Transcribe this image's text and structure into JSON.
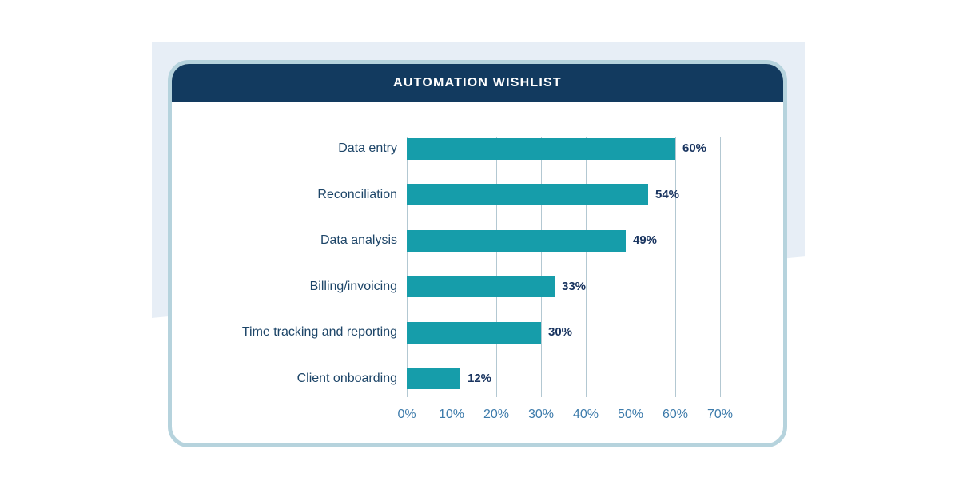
{
  "theme": {
    "page_background": "#ffffff",
    "backdrop_color": "#e7eef6",
    "card_border_color": "#b6d3dd",
    "header_background": "#123a5f",
    "title_color": "#ffffff",
    "bar_color": "#169daa",
    "grid_color": "#b3c8d2",
    "category_label_color": "#1d4568",
    "value_label_color": "#1a3560",
    "tick_label_color": "#3d7bab"
  },
  "chart_data": {
    "type": "bar",
    "orientation": "horizontal",
    "title": "AUTOMATION WISHLIST",
    "categories": [
      "Data entry",
      "Reconciliation",
      "Data analysis",
      "Billing/invoicing",
      "Time tracking and reporting",
      "Client onboarding"
    ],
    "values": [
      60,
      54,
      49,
      33,
      30,
      12
    ],
    "value_labels": [
      "60%",
      "54%",
      "49%",
      "33%",
      "30%",
      "12%"
    ],
    "x_tick_labels": [
      "0%",
      "10%",
      "20%",
      "30%",
      "40%",
      "50%",
      "60%",
      "70%"
    ],
    "xlim": [
      0,
      70
    ],
    "grid": true,
    "legend": false,
    "xlabel": "",
    "ylabel": ""
  }
}
